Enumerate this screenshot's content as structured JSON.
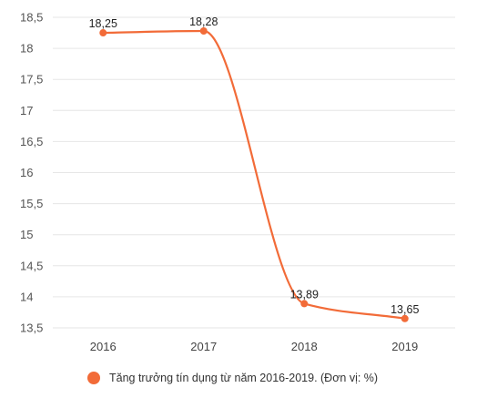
{
  "chart_data": {
    "type": "line",
    "categories": [
      "2016",
      "2017",
      "2018",
      "2019"
    ],
    "series": [
      {
        "name": "Tăng trưởng tín dụng từ năm 2016-2019. (Đơn vị: %)",
        "values": [
          18.25,
          18.28,
          13.89,
          13.65
        ],
        "labels": [
          "18,25",
          "18,28",
          "13,89",
          "13,65"
        ],
        "color": "#f26b38"
      }
    ],
    "ylim": [
      13.5,
      18.5
    ],
    "yticks": [
      13.5,
      14,
      14.5,
      15,
      15.5,
      16,
      16.5,
      17,
      17.5,
      18,
      18.5
    ],
    "ytick_labels": [
      "13,5",
      "14",
      "14,5",
      "15",
      "15,5",
      "16",
      "16,5",
      "17",
      "17,5",
      "18",
      "18,5"
    ],
    "grid": true,
    "legend_position": "bottom"
  }
}
